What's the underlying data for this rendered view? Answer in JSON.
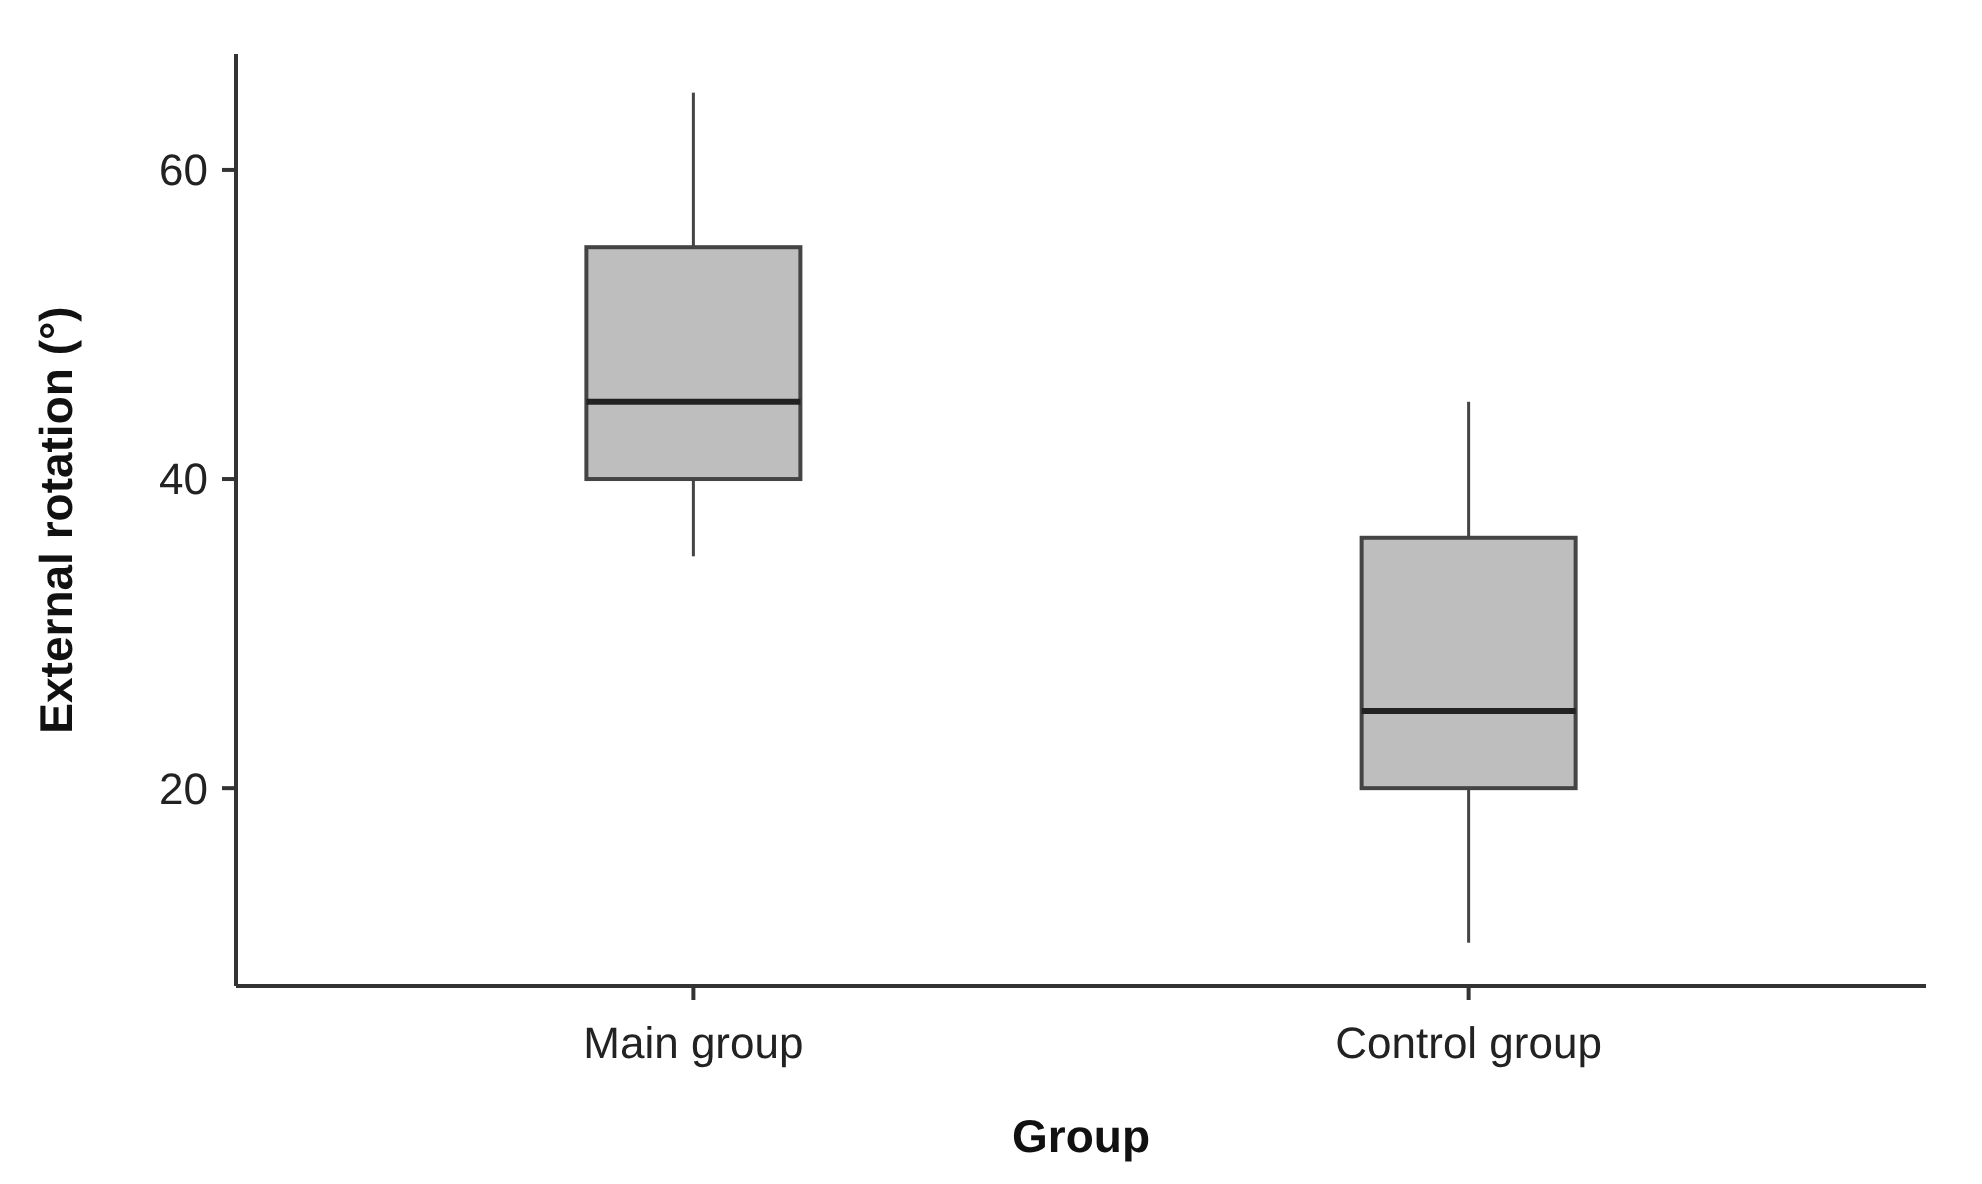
{
  "chart_data": {
    "type": "box",
    "xlabel": "Group",
    "ylabel": "External rotation (°)",
    "categories": [
      "Main group",
      "Control group"
    ],
    "color": "#bebebe",
    "boxes": [
      {
        "low": 35,
        "q1": 40,
        "median": 45,
        "q3": 55,
        "high": 65
      },
      {
        "low": 10,
        "q1": 20,
        "median": 25,
        "q3": 36.2,
        "high": 45
      }
    ],
    "ylim": [
      7.2,
      67.5
    ],
    "yticks": [
      20,
      40,
      60
    ],
    "grid": false
  }
}
